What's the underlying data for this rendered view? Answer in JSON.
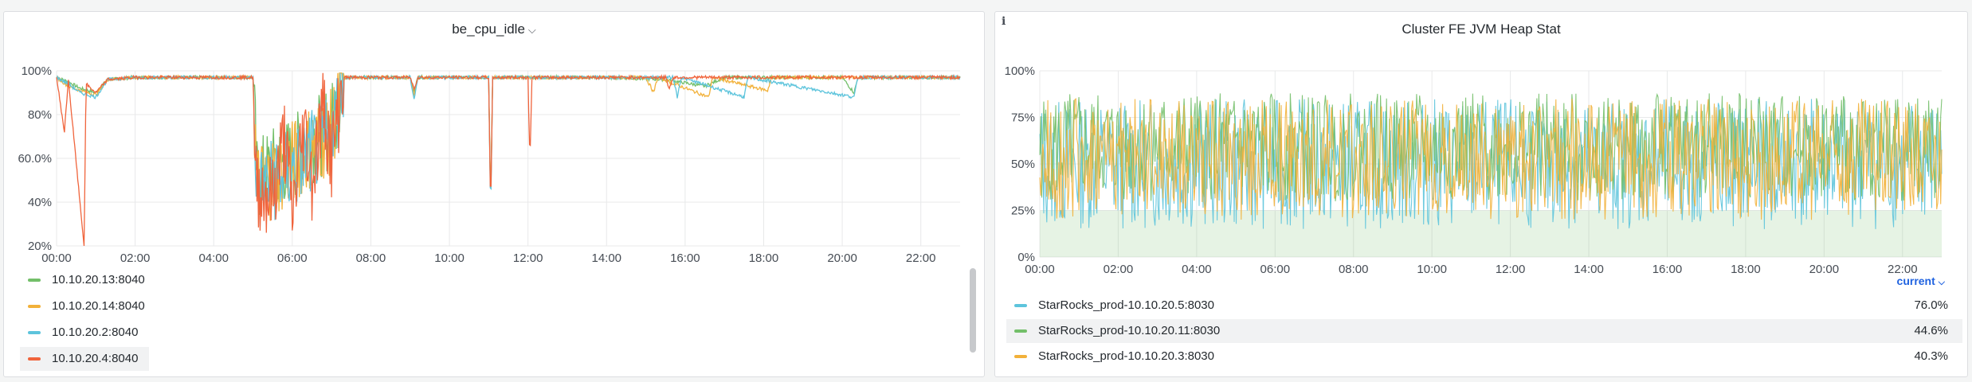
{
  "left_panel": {
    "title": "be_cpu_idle",
    "legend": [
      {
        "label": "10.10.20.13:8040",
        "color": "#73bf69"
      },
      {
        "label": "10.10.20.14:8040",
        "color": "#f2b13a"
      },
      {
        "label": "10.10.20.2:8040",
        "color": "#5dc4dc"
      },
      {
        "label": "10.10.20.4:8040",
        "color": "#f0643c"
      }
    ]
  },
  "right_panel": {
    "title": "Cluster FE JVM Heap Stat",
    "sort_label": "current",
    "legend": [
      {
        "label": "StarRocks_prod-10.10.20.5:8030",
        "value": "76.0%",
        "color": "#5dc4dc"
      },
      {
        "label": "StarRocks_prod-10.10.20.11:8030",
        "value": "44.6%",
        "color": "#73bf69"
      },
      {
        "label": "StarRocks_prod-10.10.20.3:8030",
        "value": "40.3%",
        "color": "#f2b13a"
      }
    ]
  },
  "chart_data": [
    {
      "type": "line",
      "title": "be_cpu_idle",
      "xlabel": "",
      "ylabel": "",
      "x_ticks": [
        "00:00",
        "02:00",
        "04:00",
        "06:00",
        "08:00",
        "10:00",
        "12:00",
        "14:00",
        "16:00",
        "18:00",
        "20:00",
        "22:00"
      ],
      "y_ticks": [
        "20%",
        "40%",
        "60.0%",
        "80%",
        "100%"
      ],
      "ylim": [
        20,
        100
      ],
      "xlim": [
        0,
        23
      ],
      "grid": true,
      "legend_position": "bottom-left",
      "series": [
        {
          "name": "10.10.20.13:8040",
          "color": "#73bf69",
          "points": [
            [
              0,
              97
            ],
            [
              0.3,
              95
            ],
            [
              0.6,
              92
            ],
            [
              1.0,
              90
            ],
            [
              1.3,
              96
            ],
            [
              2.0,
              97
            ],
            [
              3.5,
              97
            ],
            [
              5.0,
              97
            ],
            [
              5.1,
              50
            ],
            [
              5.5,
              55
            ],
            [
              6.0,
              60
            ],
            [
              6.5,
              68
            ],
            [
              7.0,
              75
            ],
            [
              7.3,
              97
            ],
            [
              9.0,
              97
            ],
            [
              9.1,
              91
            ],
            [
              9.2,
              97
            ],
            [
              11.0,
              97
            ],
            [
              11.05,
              38
            ],
            [
              11.1,
              97
            ],
            [
              14,
              97
            ],
            [
              15.5,
              96
            ],
            [
              16.5,
              93
            ],
            [
              17,
              97
            ],
            [
              20,
              97
            ],
            [
              20.3,
              90
            ],
            [
              20.4,
              97
            ],
            [
              23,
              97
            ]
          ]
        },
        {
          "name": "10.10.20.14:8040",
          "color": "#f2b13a",
          "points": [
            [
              0,
              97
            ],
            [
              0.3,
              93
            ],
            [
              0.6,
              91
            ],
            [
              1.0,
              89
            ],
            [
              1.3,
              96
            ],
            [
              2.0,
              97
            ],
            [
              3.5,
              97
            ],
            [
              5.0,
              97
            ],
            [
              5.1,
              48
            ],
            [
              5.5,
              52
            ],
            [
              6.0,
              58
            ],
            [
              6.5,
              66
            ],
            [
              7.0,
              72
            ],
            [
              7.3,
              97
            ],
            [
              9.0,
              97
            ],
            [
              9.1,
              89
            ],
            [
              9.2,
              97
            ],
            [
              11.0,
              97
            ],
            [
              11.05,
              40
            ],
            [
              11.1,
              97
            ],
            [
              15,
              97
            ],
            [
              15.2,
              90
            ],
            [
              15.3,
              97
            ],
            [
              16.6,
              88
            ],
            [
              16.7,
              97
            ],
            [
              18.1,
              91
            ],
            [
              18.2,
              97
            ],
            [
              23,
              97
            ]
          ]
        },
        {
          "name": "10.10.20.2:8040",
          "color": "#5dc4dc",
          "points": [
            [
              0,
              97
            ],
            [
              0.3,
              94
            ],
            [
              0.6,
              90
            ],
            [
              1.0,
              88
            ],
            [
              1.3,
              96
            ],
            [
              2.0,
              97
            ],
            [
              3.5,
              97
            ],
            [
              5.0,
              97
            ],
            [
              5.1,
              45
            ],
            [
              5.5,
              50
            ],
            [
              6.0,
              55
            ],
            [
              6.5,
              63
            ],
            [
              7.0,
              70
            ],
            [
              7.3,
              97
            ],
            [
              9.0,
              97
            ],
            [
              9.1,
              87
            ],
            [
              9.2,
              97
            ],
            [
              11.0,
              97
            ],
            [
              11.05,
              33
            ],
            [
              11.1,
              97
            ],
            [
              15.7,
              97
            ],
            [
              15.8,
              88
            ],
            [
              15.9,
              97
            ],
            [
              17.5,
              88
            ],
            [
              17.6,
              97
            ],
            [
              20.3,
              88
            ],
            [
              20.4,
              97
            ],
            [
              23,
              97
            ]
          ]
        },
        {
          "name": "10.10.20.4:8040",
          "color": "#f0643c",
          "points": [
            [
              0,
              97
            ],
            [
              0.2,
              72
            ],
            [
              0.3,
              96
            ],
            [
              0.7,
              20
            ],
            [
              0.75,
              94
            ],
            [
              1.0,
              90
            ],
            [
              1.3,
              96
            ],
            [
              2.0,
              97
            ],
            [
              3.5,
              97
            ],
            [
              5.0,
              97
            ],
            [
              5.05,
              48
            ],
            [
              5.5,
              42
            ],
            [
              5.8,
              70
            ],
            [
              6.0,
              35
            ],
            [
              6.3,
              75
            ],
            [
              6.5,
              50
            ],
            [
              6.8,
              85
            ],
            [
              7.0,
              60
            ],
            [
              7.3,
              97
            ],
            [
              9.0,
              97
            ],
            [
              9.1,
              92
            ],
            [
              9.2,
              97
            ],
            [
              11.0,
              97
            ],
            [
              11.05,
              34
            ],
            [
              11.1,
              97
            ],
            [
              12.0,
              97
            ],
            [
              12.05,
              58
            ],
            [
              12.1,
              97
            ],
            [
              15.5,
              97
            ],
            [
              15.6,
              92
            ],
            [
              15.7,
              97
            ],
            [
              23,
              97
            ]
          ]
        }
      ]
    },
    {
      "type": "line",
      "title": "Cluster FE JVM Heap Stat",
      "xlabel": "",
      "ylabel": "",
      "x_ticks": [
        "00:00",
        "02:00",
        "04:00",
        "06:00",
        "08:00",
        "10:00",
        "12:00",
        "14:00",
        "16:00",
        "18:00",
        "20:00",
        "22:00"
      ],
      "y_ticks": [
        "0%",
        "25%",
        "50%",
        "75%",
        "100%"
      ],
      "ylim": [
        0,
        100
      ],
      "xlim": [
        0,
        23
      ],
      "grid": true,
      "legend_position": "bottom",
      "baseline_fill_percent": 25,
      "series": [
        {
          "name": "StarRocks_prod-10.10.20.5:8030",
          "color": "#5dc4dc",
          "range": [
            15,
            85
          ],
          "current": 76.0
        },
        {
          "name": "StarRocks_prod-10.10.20.11:8030",
          "color": "#73bf69",
          "range": [
            30,
            88
          ],
          "current": 44.6
        },
        {
          "name": "StarRocks_prod-10.10.20.3:8030",
          "color": "#f2b13a",
          "range": [
            20,
            85
          ],
          "current": 40.3
        }
      ]
    }
  ]
}
